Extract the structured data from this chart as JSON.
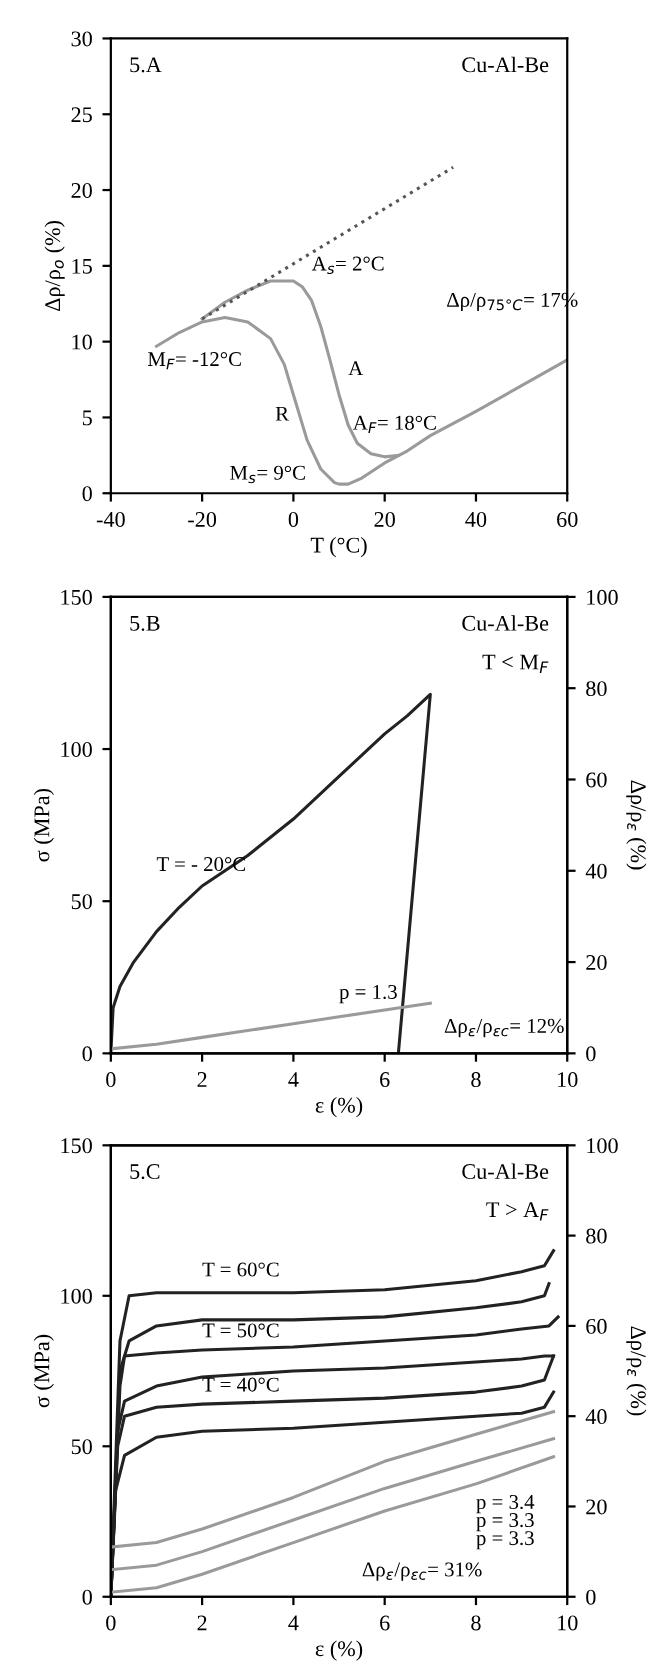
{
  "chart_data": [
    {
      "type": "line",
      "xlabel": "T (°C)",
      "ylabel": "Δρ/ρ$_{o}$ (%)",
      "xlim": [
        -40,
        60
      ],
      "ylim": [
        0,
        30
      ],
      "xticks": [
        -40,
        -20,
        0,
        20,
        40,
        60
      ],
      "yticks": [
        0,
        5,
        10,
        15,
        20,
        25,
        30
      ],
      "grid": false,
      "legend": false,
      "marker": "none",
      "series": [
        {
          "color": "#9a9a9a",
          "x": [
            -30,
            -25,
            -20,
            -15,
            -10,
            -5,
            -2,
            0,
            3,
            6,
            9,
            10,
            12,
            15,
            20,
            25,
            30,
            40,
            50,
            60
          ],
          "values": [
            9.7,
            10.6,
            11.3,
            11.6,
            11.3,
            10.2,
            8.5,
            6.5,
            3.5,
            1.6,
            0.7,
            0.6,
            0.6,
            1.0,
            2.0,
            2.8,
            3.8,
            5.4,
            7.1,
            8.8
          ]
        },
        {
          "color": "#9a9a9a",
          "x": [
            -20,
            -15,
            -10,
            -5,
            -2,
            0,
            2,
            4,
            6,
            8,
            10,
            12,
            14,
            17,
            20,
            23
          ],
          "values": [
            11.5,
            12.6,
            13.4,
            14.0,
            14.0,
            14.0,
            13.6,
            12.7,
            11.0,
            8.8,
            6.5,
            4.5,
            3.3,
            2.6,
            2.4,
            2.5
          ]
        },
        {
          "color": "#555555",
          "line_style": "dotted",
          "x": [
            -20,
            35
          ],
          "values": [
            11.5,
            21.5
          ]
        }
      ],
      "annotations": [
        "5.A",
        "Cu-Al-Be",
        "A$_{s}$= 2°C",
        "M$_{F}$= -12°C",
        "A",
        "R",
        "A$_{F}$= 18°C",
        "M$_{s}$= 9°C",
        "Δρ/ρ$_{75°C}$= 17%"
      ]
    },
    {
      "type": "line",
      "xlabel": "ε (%)",
      "ylabel": "σ (MPa)",
      "y2label": "Δρ/ρ$_{ε}$ (%)",
      "xlim": [
        0,
        10
      ],
      "ylim": [
        0,
        150
      ],
      "y2lim": [
        0,
        100
      ],
      "xticks": [
        0,
        2,
        4,
        6,
        8,
        10
      ],
      "yticks": [
        0,
        50,
        100,
        150
      ],
      "y2ticks": [
        0,
        20,
        40,
        60,
        80,
        100
      ],
      "grid": false,
      "legend": false,
      "marker": "none",
      "series": [
        {
          "color": "#222222",
          "x": [
            0,
            0.05,
            0.2,
            0.5,
            1,
            1.5,
            2,
            3,
            4,
            5,
            6,
            6.5,
            7,
            6.3
          ],
          "values": [
            0,
            15,
            22,
            30,
            40,
            48,
            55,
            65,
            77,
            91,
            105,
            111,
            118,
            0
          ]
        },
        {
          "color": "#9a9a9a",
          "axis": "y2",
          "x": [
            0,
            1,
            2,
            3,
            4,
            5,
            6,
            7
          ],
          "values": [
            1,
            2,
            3.5,
            5,
            6.5,
            8,
            9.5,
            11
          ]
        }
      ],
      "annotations": [
        "5.B",
        "Cu-Al-Be",
        "T < M$_{F}$",
        "T = - 20°C",
        "p = 1.3",
        "Δρ$_{ε}$/ρ$_{εc}$= 12%"
      ]
    },
    {
      "type": "line",
      "xlabel": "ε (%)",
      "ylabel": "σ (MPa)",
      "y2label": "Δρ/ρ$_{ε}$ (%)",
      "xlim": [
        0,
        10
      ],
      "ylim": [
        0,
        150
      ],
      "y2lim": [
        0,
        100
      ],
      "xticks": [
        0,
        2,
        4,
        6,
        8,
        10
      ],
      "yticks": [
        0,
        50,
        100,
        150
      ],
      "y2ticks": [
        0,
        20,
        40,
        60,
        80,
        100
      ],
      "grid": false,
      "legend": false,
      "marker": "none",
      "series": [
        {
          "color": "#222222",
          "x": [
            0,
            0.2,
            0.4,
            1,
            2,
            4,
            6,
            8,
            9,
            9.5,
            9.7
          ],
          "values": [
            0,
            85,
            100,
            101,
            101,
            101,
            102,
            105,
            108,
            110,
            115
          ]
        },
        {
          "color": "#222222",
          "x": [
            0,
            0.2,
            0.4,
            1,
            2,
            4,
            6,
            8,
            9,
            9.5,
            9.6
          ],
          "values": [
            0,
            75,
            85,
            90,
            92,
            92,
            93,
            96,
            98,
            100,
            104
          ]
        },
        {
          "color": "#222222",
          "x": [
            0,
            0.2,
            0.3,
            1,
            2,
            4,
            6,
            8,
            9,
            9.6,
            9.8
          ],
          "values": [
            0,
            70,
            80,
            81,
            82,
            83,
            85,
            87,
            89,
            90,
            93
          ]
        },
        {
          "color": "#222222",
          "x": [
            0,
            0.15,
            0.3,
            1,
            2,
            4,
            6,
            8,
            9,
            9.5,
            9.7
          ],
          "values": [
            0,
            55,
            65,
            70,
            73,
            75,
            76,
            78,
            79,
            80,
            80
          ]
        },
        {
          "color": "#222222",
          "x": [
            0,
            0.15,
            0.3,
            1,
            2,
            4,
            6,
            8,
            9,
            9.5,
            9.7
          ],
          "values": [
            0,
            50,
            60,
            63,
            64,
            65,
            66,
            68,
            70,
            72,
            80
          ]
        },
        {
          "color": "#222222",
          "x": [
            0,
            0.1,
            0.3,
            1,
            2,
            4,
            6,
            8,
            9,
            9.5,
            9.7
          ],
          "values": [
            0,
            35,
            47,
            53,
            55,
            56,
            58,
            60,
            61,
            63,
            68
          ]
        },
        {
          "color": "#9a9a9a",
          "axis": "y2",
          "x": [
            0,
            1,
            2,
            4,
            6,
            8,
            9.7
          ],
          "values": [
            11,
            12,
            15,
            22,
            30,
            36,
            41
          ]
        },
        {
          "color": "#9a9a9a",
          "axis": "y2",
          "x": [
            0,
            1,
            2,
            4,
            6,
            8,
            9.7
          ],
          "values": [
            6,
            7,
            10,
            17,
            24,
            30,
            35
          ]
        },
        {
          "color": "#9a9a9a",
          "axis": "y2",
          "x": [
            0,
            1,
            2,
            4,
            6,
            8,
            9.7
          ],
          "values": [
            1,
            2,
            5,
            12,
            19,
            25,
            31
          ]
        }
      ],
      "annotations": [
        "5.C",
        "Cu-Al-Be",
        "T > A$_{F}$",
        "T = 60°C",
        "T = 50°C",
        "T = 40°C",
        "p = 3.4",
        "p = 3.3",
        "p = 3.3",
        "Δρ$_{ε}$/ρ$_{εc}$= 31%"
      ]
    }
  ]
}
